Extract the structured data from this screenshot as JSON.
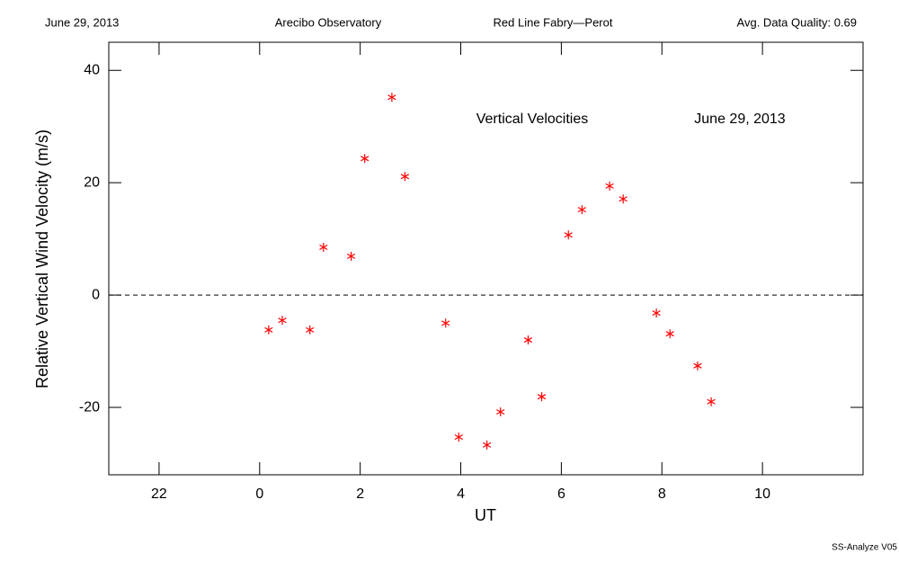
{
  "header": [
    "June 29, 2013",
    "Arecibo Observatory",
    "Red Line Fabry—Perot",
    "Avg. Data Quality: 0.69"
  ],
  "chart_data": {
    "type": "scatter",
    "xlabel": "UT",
    "ylabel": "Relative Vertical Wind Velocity (m/s)",
    "annotations": [
      "Vertical Velocities",
      "June 29, 2013"
    ],
    "xlim": [
      -3,
      12
    ],
    "ylim": [
      -32,
      45
    ],
    "xticks": [
      {
        "value": -2,
        "label": "22"
      },
      0,
      2,
      4,
      6,
      8,
      10
    ],
    "yticks": [
      -20,
      0,
      20,
      40
    ],
    "hline": 0,
    "color": "#ff0000",
    "x": [
      0.18,
      0.45,
      1.0,
      1.27,
      1.82,
      2.09,
      2.63,
      2.89,
      3.7,
      3.96,
      4.52,
      4.79,
      5.34,
      5.61,
      6.14,
      6.41,
      6.96,
      7.23,
      7.89,
      8.16,
      8.71,
      8.98
    ],
    "values": [
      -6.2,
      -4.5,
      -6.2,
      8.5,
      6.9,
      24.3,
      35.2,
      21.1,
      -5.0,
      -25.3,
      -26.7,
      -20.8,
      -8.0,
      -18.1,
      10.7,
      15.2,
      19.4,
      17.1,
      -3.2,
      -6.9,
      -12.6,
      -19.0
    ]
  },
  "footer": "SS-Analyze V05"
}
